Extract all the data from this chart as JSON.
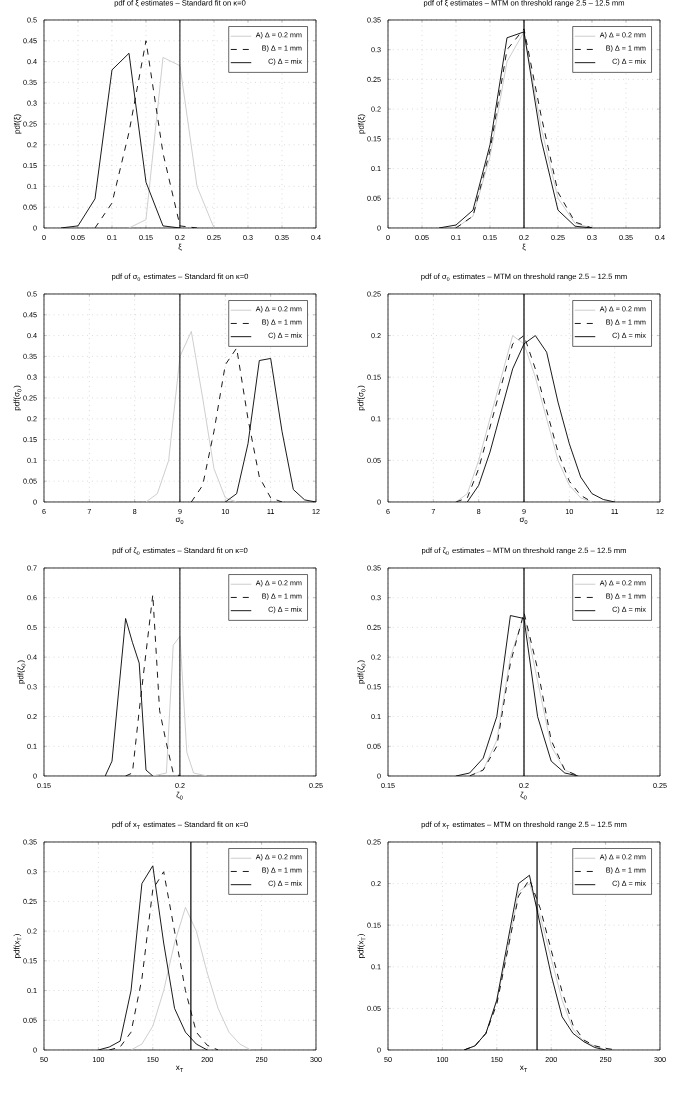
{
  "chart_data": [
    {
      "type": "line",
      "title": "pdf of ξ estimates – Standard fit on κ=0",
      "xlabel": "ξ",
      "ylabel": "pdf(ξ)",
      "xlim": [
        0,
        0.4
      ],
      "xticks": [
        0,
        0.05,
        0.1,
        0.15,
        0.2,
        0.25,
        0.3,
        0.35,
        0.4
      ],
      "ylim": [
        0,
        0.5
      ],
      "yticks": [
        0,
        0.05,
        0.1,
        0.15,
        0.2,
        0.25,
        0.3,
        0.35,
        0.4,
        0.45,
        0.5
      ],
      "grid": true,
      "legend": "top right",
      "ref_lines": [
        {
          "axis": "x",
          "value": 0.2,
          "color": "#000000"
        }
      ],
      "series": [
        {
          "name": "A) Δ = 0.2 mm",
          "color": "#c8c8c8",
          "line_style": "solid",
          "x": [
            0.125,
            0.15,
            0.175,
            0.2,
            0.225,
            0.25
          ],
          "values": [
            0,
            0.02,
            0.41,
            0.39,
            0.1,
            0
          ]
        },
        {
          "name": "B) Δ = 1 mm",
          "color": "#000000",
          "line_style": "dashed",
          "x": [
            0.075,
            0.1,
            0.125,
            0.15,
            0.175,
            0.2,
            0.225
          ],
          "values": [
            0,
            0.06,
            0.23,
            0.45,
            0.18,
            0.005,
            0
          ]
        },
        {
          "name": "C) Δ = mix",
          "color": "#000000",
          "line_style": "solid",
          "x": [
            0.025,
            0.05,
            0.075,
            0.1,
            0.125,
            0.15,
            0.175,
            0.2
          ],
          "values": [
            0,
            0.005,
            0.07,
            0.38,
            0.42,
            0.11,
            0.005,
            0
          ]
        }
      ]
    },
    {
      "type": "line",
      "title": "pdf of ξ estimates – MTM on threshold range 2.5 – 12.5 mm",
      "xlabel": "ξ",
      "ylabel": "pdf(ξ)",
      "xlim": [
        0,
        0.4
      ],
      "xticks": [
        0,
        0.05,
        0.1,
        0.15,
        0.2,
        0.25,
        0.3,
        0.35,
        0.4
      ],
      "ylim": [
        0,
        0.35
      ],
      "yticks": [
        0,
        0.05,
        0.1,
        0.15,
        0.2,
        0.25,
        0.3,
        0.35
      ],
      "grid": true,
      "legend": "top right",
      "ref_lines": [
        {
          "axis": "x",
          "value": 0.2,
          "color": "#000000"
        }
      ],
      "series": [
        {
          "name": "A) Δ = 0.2 mm",
          "color": "#c8c8c8",
          "line_style": "solid",
          "x": [
            0.1,
            0.125,
            0.15,
            0.175,
            0.2,
            0.225,
            0.25,
            0.275,
            0.3
          ],
          "values": [
            0,
            0.02,
            0.12,
            0.28,
            0.33,
            0.17,
            0.05,
            0.008,
            0
          ]
        },
        {
          "name": "B) Δ = 1 mm",
          "color": "#000000",
          "line_style": "dashed",
          "x": [
            0.1,
            0.125,
            0.15,
            0.175,
            0.2,
            0.225,
            0.25,
            0.275,
            0.3
          ],
          "values": [
            0,
            0.02,
            0.13,
            0.3,
            0.335,
            0.19,
            0.06,
            0.01,
            0
          ]
        },
        {
          "name": "C) Δ = mix",
          "color": "#000000",
          "line_style": "solid",
          "x": [
            0.075,
            0.1,
            0.125,
            0.15,
            0.175,
            0.2,
            0.225,
            0.25,
            0.275,
            0.3
          ],
          "values": [
            0,
            0.005,
            0.03,
            0.14,
            0.32,
            0.33,
            0.15,
            0.03,
            0.003,
            0
          ]
        }
      ]
    },
    {
      "type": "line",
      "title": "pdf of σ$_{0}$ estimates – Standard fit on κ=0",
      "xlabel": "σ$_{0}$",
      "ylabel": "pdf(σ$_{0}$)",
      "xlim": [
        6,
        12
      ],
      "xticks": [
        6,
        7,
        8,
        9,
        10,
        11,
        12
      ],
      "ylim": [
        0,
        0.5
      ],
      "yticks": [
        0,
        0.05,
        0.1,
        0.15,
        0.2,
        0.25,
        0.3,
        0.35,
        0.4,
        0.45,
        0.5
      ],
      "grid": true,
      "legend": "top right",
      "ref_lines": [
        {
          "axis": "x",
          "value": 9,
          "color": "#000000"
        }
      ],
      "series": [
        {
          "name": "A) Δ = 0.2 mm",
          "color": "#c8c8c8",
          "line_style": "solid",
          "x": [
            8.25,
            8.5,
            8.75,
            9,
            9.25,
            9.5,
            9.75,
            10,
            10.25
          ],
          "values": [
            0,
            0.02,
            0.1,
            0.35,
            0.41,
            0.25,
            0.08,
            0.01,
            0
          ]
        },
        {
          "name": "B) Δ = 1 mm",
          "color": "#000000",
          "line_style": "dashed",
          "x": [
            9.25,
            9.5,
            9.75,
            10,
            10.25,
            10.5,
            10.75,
            11,
            11.25
          ],
          "values": [
            0,
            0.04,
            0.17,
            0.33,
            0.37,
            0.2,
            0.06,
            0.01,
            0
          ]
        },
        {
          "name": "C) Δ = mix",
          "color": "#000000",
          "line_style": "solid",
          "x": [
            10,
            10.25,
            10.5,
            10.75,
            11,
            11.25,
            11.5,
            11.75,
            12
          ],
          "values": [
            0,
            0.02,
            0.14,
            0.34,
            0.345,
            0.17,
            0.03,
            0.005,
            0
          ]
        }
      ]
    },
    {
      "type": "line",
      "title": "pdf of σ$_{0}$ estimates – MTM on threshold range 2.5 – 12.5 mm",
      "xlabel": "σ$_{0}$",
      "ylabel": "pdf(σ$_{0}$)",
      "xlim": [
        6,
        12
      ],
      "xticks": [
        6,
        7,
        8,
        9,
        10,
        11,
        12
      ],
      "ylim": [
        0,
        0.25
      ],
      "yticks": [
        0,
        0.05,
        0.1,
        0.15,
        0.2,
        0.25
      ],
      "grid": true,
      "legend": "top right",
      "ref_lines": [
        {
          "axis": "x",
          "value": 9,
          "color": "#000000"
        }
      ],
      "series": [
        {
          "name": "A) Δ = 0.2 mm",
          "color": "#c8c8c8",
          "line_style": "solid",
          "x": [
            7.5,
            7.75,
            8,
            8.25,
            8.5,
            8.75,
            9,
            9.25,
            9.5,
            9.75,
            10,
            10.25,
            10.5
          ],
          "values": [
            0,
            0.01,
            0.05,
            0.1,
            0.15,
            0.2,
            0.19,
            0.15,
            0.1,
            0.05,
            0.02,
            0.005,
            0
          ]
        },
        {
          "name": "B) Δ = 1 mm",
          "color": "#000000",
          "line_style": "dashed",
          "x": [
            7.5,
            7.75,
            8,
            8.25,
            8.5,
            8.75,
            9,
            9.25,
            9.5,
            9.75,
            10,
            10.25,
            10.5
          ],
          "values": [
            0,
            0.005,
            0.04,
            0.09,
            0.14,
            0.19,
            0.2,
            0.16,
            0.11,
            0.06,
            0.025,
            0.008,
            0
          ]
        },
        {
          "name": "C) Δ = mix",
          "color": "#000000",
          "line_style": "solid",
          "x": [
            7.75,
            8,
            8.25,
            8.5,
            8.75,
            9,
            9.25,
            9.5,
            9.75,
            10,
            10.25,
            10.5,
            10.75,
            11
          ],
          "values": [
            0,
            0.02,
            0.06,
            0.11,
            0.16,
            0.19,
            0.2,
            0.18,
            0.12,
            0.07,
            0.03,
            0.01,
            0.003,
            0
          ]
        }
      ]
    },
    {
      "type": "line",
      "title": "pdf of ζ$_{0}$ estimates – Standard fit on κ=0",
      "xlabel": "ζ$_{0}$",
      "ylabel": "pdf(ζ$_{0}$)",
      "xlim": [
        0.15,
        0.25
      ],
      "xticks": [
        0.15,
        0.2,
        0.25
      ],
      "ylim": [
        0,
        0.7
      ],
      "yticks": [
        0,
        0.1,
        0.2,
        0.3,
        0.4,
        0.5,
        0.6,
        0.7
      ],
      "grid": true,
      "legend": "top right",
      "ref_lines": [
        {
          "axis": "x",
          "value": 0.2,
          "color": "#000000"
        }
      ],
      "series": [
        {
          "name": "A) Δ = 0.2 mm",
          "color": "#c8c8c8",
          "line_style": "solid",
          "x": [
            0.19,
            0.195,
            0.1975,
            0.2,
            0.2025,
            0.205,
            0.21
          ],
          "values": [
            0,
            0.01,
            0.44,
            0.47,
            0.08,
            0.01,
            0
          ]
        },
        {
          "name": "B) Δ = 1 mm",
          "color": "#000000",
          "line_style": "dashed",
          "x": [
            0.18,
            0.1825,
            0.185,
            0.19,
            0.1925,
            0.195,
            0.1975,
            0.2
          ],
          "values": [
            0,
            0.01,
            0.22,
            0.61,
            0.22,
            0.11,
            0.01,
            0
          ]
        },
        {
          "name": "C) Δ = mix",
          "color": "#000000",
          "line_style": "solid",
          "x": [
            0.1725,
            0.175,
            0.18,
            0.1825,
            0.185,
            0.1875,
            0.19
          ],
          "values": [
            0,
            0.05,
            0.53,
            0.45,
            0.38,
            0.02,
            0
          ]
        }
      ]
    },
    {
      "type": "line",
      "title": "pdf of ζ$_{0}$ estimates – MTM on threshold range 2.5 – 12.5 mm",
      "xlabel": "ζ$_{0}$",
      "ylabel": "pdf(ζ$_{0}$)",
      "xlim": [
        0.15,
        0.25
      ],
      "xticks": [
        0.15,
        0.2,
        0.25
      ],
      "ylim": [
        0,
        0.35
      ],
      "yticks": [
        0,
        0.05,
        0.1,
        0.15,
        0.2,
        0.25,
        0.3,
        0.35
      ],
      "grid": true,
      "legend": "top right",
      "ref_lines": [
        {
          "axis": "x",
          "value": 0.2,
          "color": "#000000"
        }
      ],
      "series": [
        {
          "name": "A) Δ = 0.2 mm",
          "color": "#c8c8c8",
          "line_style": "solid",
          "x": [
            0.18,
            0.185,
            0.19,
            0.195,
            0.2,
            0.205,
            0.21,
            0.215,
            0.22
          ],
          "values": [
            0,
            0.01,
            0.06,
            0.2,
            0.27,
            0.16,
            0.05,
            0.01,
            0
          ]
        },
        {
          "name": "B) Δ = 1 mm",
          "color": "#000000",
          "line_style": "dashed",
          "x": [
            0.18,
            0.185,
            0.19,
            0.195,
            0.2,
            0.205,
            0.21,
            0.215,
            0.22
          ],
          "values": [
            0,
            0.01,
            0.05,
            0.19,
            0.275,
            0.18,
            0.06,
            0.01,
            0
          ]
        },
        {
          "name": "C) Δ = mix",
          "color": "#000000",
          "line_style": "solid",
          "x": [
            0.175,
            0.18,
            0.185,
            0.19,
            0.195,
            0.2,
            0.205,
            0.21,
            0.215,
            0.22
          ],
          "values": [
            0,
            0.005,
            0.03,
            0.1,
            0.27,
            0.265,
            0.1,
            0.025,
            0.005,
            0
          ]
        }
      ]
    },
    {
      "type": "line",
      "title": "pdf of x$_{T}$ estimates – Standard fit on κ=0",
      "xlabel": "x$_{T}$",
      "ylabel": "pdf(x$_{T}$)",
      "xlim": [
        50,
        300
      ],
      "xticks": [
        50,
        100,
        150,
        200,
        250,
        300
      ],
      "ylim": [
        0,
        0.35
      ],
      "yticks": [
        0,
        0.05,
        0.1,
        0.15,
        0.2,
        0.25,
        0.3,
        0.35
      ],
      "grid": true,
      "legend": "top right",
      "ref_lines": [
        {
          "axis": "x",
          "value": 185,
          "color": "#000000"
        }
      ],
      "series": [
        {
          "name": "A) Δ = 0.2 mm",
          "color": "#c8c8c8",
          "line_style": "solid",
          "x": [
            130,
            140,
            150,
            160,
            170,
            180,
            190,
            200,
            210,
            220,
            230,
            240
          ],
          "values": [
            0,
            0.01,
            0.04,
            0.1,
            0.18,
            0.24,
            0.2,
            0.13,
            0.07,
            0.03,
            0.01,
            0
          ]
        },
        {
          "name": "B) Δ = 1 mm",
          "color": "#000000",
          "line_style": "dashed",
          "x": [
            110,
            120,
            130,
            140,
            150,
            160,
            170,
            180,
            190,
            200,
            210
          ],
          "values": [
            0,
            0.005,
            0.03,
            0.12,
            0.27,
            0.3,
            0.2,
            0.1,
            0.03,
            0.008,
            0
          ]
        },
        {
          "name": "C) Δ = mix",
          "color": "#000000",
          "line_style": "solid",
          "x": [
            100,
            110,
            120,
            130,
            140,
            150,
            160,
            170,
            180,
            190,
            200
          ],
          "values": [
            0,
            0.005,
            0.015,
            0.1,
            0.28,
            0.31,
            0.18,
            0.07,
            0.03,
            0.01,
            0
          ]
        }
      ]
    },
    {
      "type": "line",
      "title": "pdf of x$_{T}$ estimates – MTM on threshold range 2.5 – 12.5 mm",
      "xlabel": "x$_{T}$",
      "ylabel": "pdf(x$_{T}$)",
      "xlim": [
        50,
        300
      ],
      "xticks": [
        50,
        100,
        150,
        200,
        250,
        300
      ],
      "ylim": [
        0,
        0.25
      ],
      "yticks": [
        0,
        0.05,
        0.1,
        0.15,
        0.2,
        0.25
      ],
      "grid": true,
      "legend": "top right",
      "ref_lines": [
        {
          "axis": "x",
          "value": 187,
          "color": "#000000"
        }
      ],
      "series": [
        {
          "name": "A) Δ = 0.2 mm",
          "color": "#c8c8c8",
          "line_style": "solid",
          "x": [
            120,
            130,
            140,
            150,
            160,
            170,
            180,
            190,
            200,
            210,
            220,
            230,
            240,
            250
          ],
          "values": [
            0,
            0.005,
            0.02,
            0.06,
            0.12,
            0.19,
            0.2,
            0.16,
            0.11,
            0.06,
            0.025,
            0.01,
            0.005,
            0
          ]
        },
        {
          "name": "B) Δ = 1 mm",
          "color": "#000000",
          "line_style": "dashed",
          "x": [
            120,
            130,
            140,
            150,
            160,
            170,
            180,
            190,
            200,
            210,
            220,
            230,
            240,
            250,
            260
          ],
          "values": [
            0,
            0.005,
            0.02,
            0.055,
            0.12,
            0.185,
            0.205,
            0.17,
            0.12,
            0.07,
            0.03,
            0.012,
            0.005,
            0.002,
            0
          ]
        },
        {
          "name": "C) Δ = mix",
          "color": "#000000",
          "line_style": "solid",
          "x": [
            120,
            130,
            140,
            150,
            160,
            170,
            180,
            190,
            200,
            210,
            220,
            230,
            240,
            250
          ],
          "values": [
            0,
            0.005,
            0.02,
            0.06,
            0.13,
            0.2,
            0.21,
            0.15,
            0.09,
            0.04,
            0.02,
            0.01,
            0.003,
            0
          ]
        }
      ]
    }
  ]
}
